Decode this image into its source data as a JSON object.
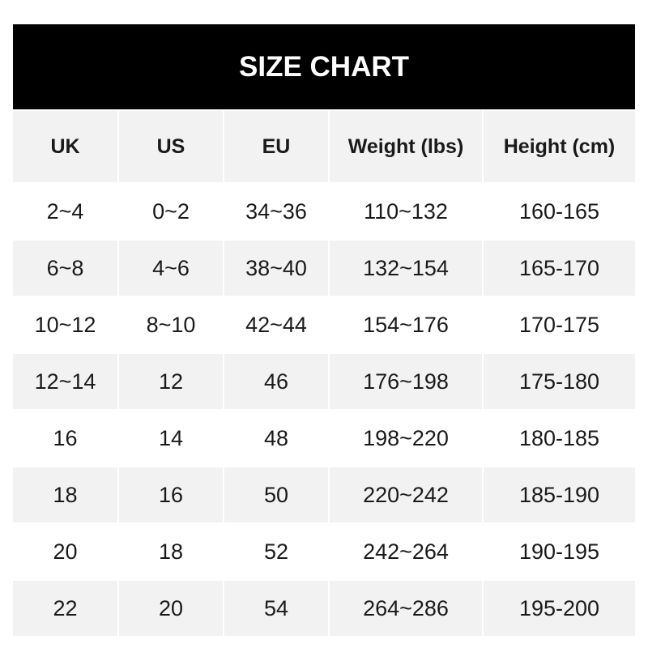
{
  "title": "SIZE CHART",
  "headers": [
    "UK",
    "US",
    "EU",
    "Weight (lbs)",
    "Height (cm)"
  ],
  "rows": [
    [
      "2~4",
      "0~2",
      "34~36",
      "110~132",
      "160-165"
    ],
    [
      "6~8",
      "4~6",
      "38~40",
      "132~154",
      "165-170"
    ],
    [
      "10~12",
      "8~10",
      "42~44",
      "154~176",
      "170-175"
    ],
    [
      "12~14",
      "12",
      "46",
      "176~198",
      "175-180"
    ],
    [
      "16",
      "14",
      "48",
      "198~220",
      "180-185"
    ],
    [
      "18",
      "16",
      "50",
      "220~242",
      "185-190"
    ],
    [
      "20",
      "18",
      "52",
      "242~264",
      "190-195"
    ],
    [
      "22",
      "20",
      "54",
      "264~286",
      "195-200"
    ]
  ]
}
